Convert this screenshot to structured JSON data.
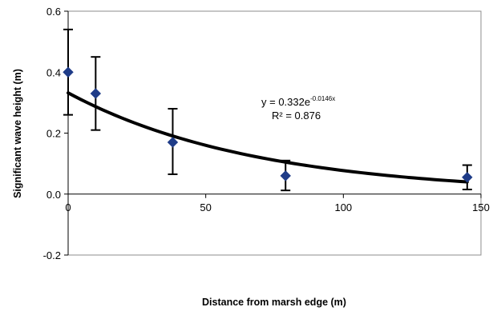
{
  "chart_data": {
    "type": "scatter",
    "xlabel": "Distance from marsh edge (m)",
    "ylabel": "Significant wave height (m)",
    "xlim": [
      0,
      150
    ],
    "ylim": [
      -0.2,
      0.6
    ],
    "x_ticks": [
      "0",
      "50",
      "100",
      "150"
    ],
    "y_ticks": [
      "-0.2",
      "0.0",
      "0.2",
      "0.4",
      "0.6"
    ],
    "y_tick_values": [
      -0.2,
      0.0,
      0.2,
      0.4,
      0.6
    ],
    "x_tick_values": [
      0,
      50,
      100,
      150
    ],
    "grid": false,
    "series": [
      {
        "x": [
          0,
          10,
          38,
          79,
          145
        ],
        "y": [
          0.4,
          0.33,
          0.17,
          0.06,
          0.055
        ],
        "error_low": [
          0.26,
          0.21,
          0.065,
          0.012,
          0.015
        ],
        "error_high": [
          0.54,
          0.45,
          0.28,
          0.11,
          0.095
        ],
        "marker": "diamond",
        "color": "#1f3c88"
      }
    ],
    "trendline": {
      "type": "exponential",
      "a": 0.332,
      "b": -0.0146,
      "x_range": [
        0,
        145
      ],
      "color": "#000000"
    },
    "annotation": {
      "equation_main": "y = 0.332e",
      "equation_exponent": "-0.0146x",
      "r_squared": "R² = 0.876"
    }
  }
}
